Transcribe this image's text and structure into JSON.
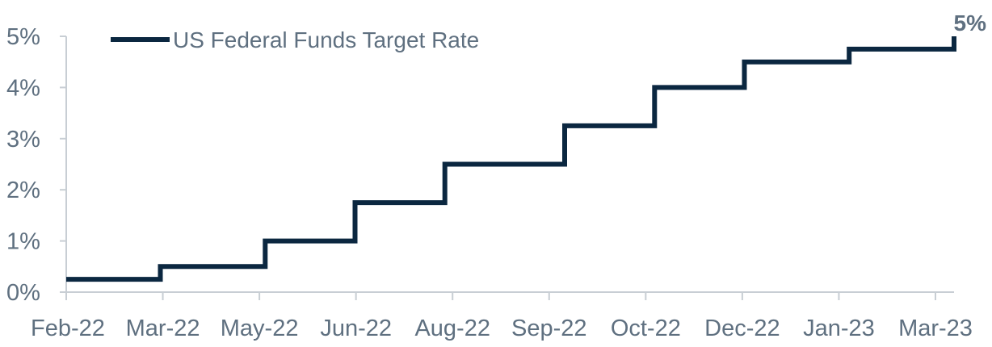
{
  "chart_data": {
    "type": "line",
    "title": "",
    "xlabel": "",
    "ylabel": "",
    "line_style": "step",
    "legend_position": "top-left",
    "grid": false,
    "colors": {
      "series": "#0b2740",
      "text": "#5f7080",
      "axis": "#c8ced4"
    },
    "x_ticks": [
      "Feb-22",
      "Mar-22",
      "May-22",
      "Jun-22",
      "Aug-22",
      "Sep-22",
      "Oct-22",
      "Dec-22",
      "Jan-23",
      "Mar-23"
    ],
    "x_range": [
      "2022-02-01",
      "2023-03-23"
    ],
    "y_ticks": [
      "0%",
      "1%",
      "2%",
      "3%",
      "4%",
      "5%"
    ],
    "ylim": [
      0,
      5
    ],
    "series": [
      {
        "name": "US Federal Funds Target Rate",
        "points": [
          {
            "date": "2022-02-01",
            "value": 0.25
          },
          {
            "date": "2022-03-17",
            "value": 0.5
          },
          {
            "date": "2022-05-05",
            "value": 1.0
          },
          {
            "date": "2022-06-16",
            "value": 1.75
          },
          {
            "date": "2022-07-28",
            "value": 2.5
          },
          {
            "date": "2022-09-22",
            "value": 3.25
          },
          {
            "date": "2022-11-03",
            "value": 4.0
          },
          {
            "date": "2022-12-15",
            "value": 4.5
          },
          {
            "date": "2023-02-02",
            "value": 4.75
          },
          {
            "date": "2023-03-23",
            "value": 5.0
          }
        ]
      }
    ],
    "annotations": [
      {
        "text": "5%",
        "date": "2023-03-23",
        "value": 5.0
      }
    ]
  }
}
